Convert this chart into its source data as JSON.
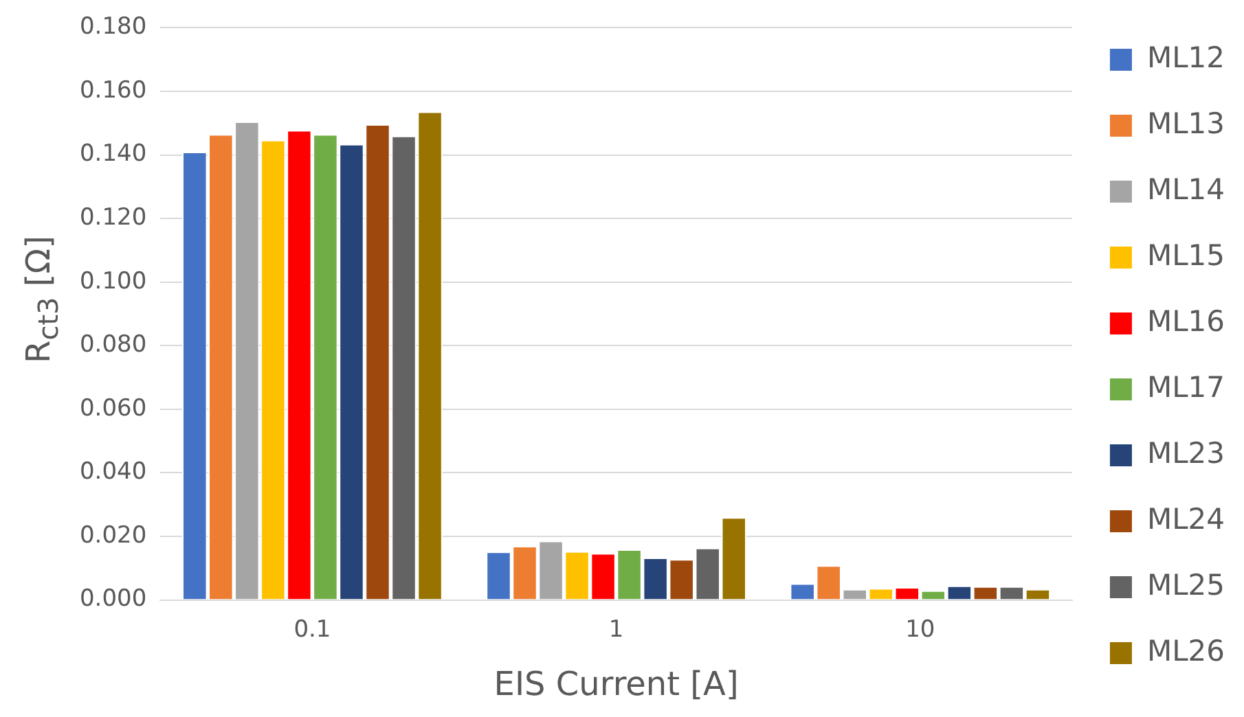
{
  "chart_data": {
    "type": "bar",
    "xlabel": "EIS Current [A]",
    "ylabel": "R$_{ct3}$ [Ω]",
    "categories": [
      "0.1",
      "1",
      "10"
    ],
    "series": [
      {
        "name": "ML12",
        "color": "#4472c4",
        "values": [
          0.141,
          0.0152,
          0.0052
        ]
      },
      {
        "name": "ML13",
        "color": "#ed7d31",
        "values": [
          0.1465,
          0.017,
          0.0109
        ]
      },
      {
        "name": "ML14",
        "color": "#a5a5a5",
        "values": [
          0.1505,
          0.0186,
          0.0034
        ]
      },
      {
        "name": "ML15",
        "color": "#ffc000",
        "values": [
          0.1447,
          0.0153,
          0.0037
        ]
      },
      {
        "name": "ML16",
        "color": "#ff0000",
        "values": [
          0.1478,
          0.0147,
          0.004
        ]
      },
      {
        "name": "ML17",
        "color": "#70ad47",
        "values": [
          0.1465,
          0.0159,
          0.003
        ]
      },
      {
        "name": "ML23",
        "color": "#264478",
        "values": [
          0.1434,
          0.0133,
          0.0045
        ]
      },
      {
        "name": "ML24",
        "color": "#9e480e",
        "values": [
          0.1496,
          0.0128,
          0.0043
        ]
      },
      {
        "name": "ML25",
        "color": "#636363",
        "values": [
          0.146,
          0.0164,
          0.0043
        ]
      },
      {
        "name": "ML26",
        "color": "#997300",
        "values": [
          0.1536,
          0.026,
          0.0034
        ]
      }
    ],
    "ylim": [
      0,
      0.18
    ],
    "yticks": [
      {
        "value": 0,
        "label": "0.000"
      },
      {
        "value": 0.02,
        "label": "0.020"
      },
      {
        "value": 0.04,
        "label": "0.040"
      },
      {
        "value": 0.06,
        "label": "0.060"
      },
      {
        "value": 0.08,
        "label": "0.080"
      },
      {
        "value": 0.1,
        "label": "0.100"
      },
      {
        "value": 0.12,
        "label": "0.120"
      },
      {
        "value": 0.14,
        "label": "0.140"
      },
      {
        "value": 0.16,
        "label": "0.160"
      },
      {
        "value": 0.18,
        "label": "0.180"
      }
    ],
    "grid": "y",
    "legend": "right"
  }
}
